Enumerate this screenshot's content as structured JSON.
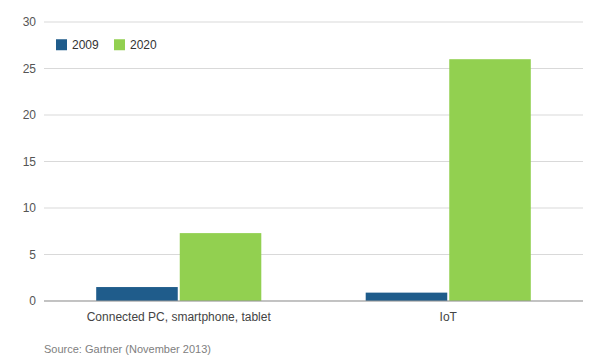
{
  "chart_data": {
    "type": "bar",
    "categories": [
      "Connected PC, smartphone, tablet",
      "IoT"
    ],
    "series": [
      {
        "name": "2009",
        "color": "#1f5c8b",
        "values": [
          1.5,
          0.9
        ]
      },
      {
        "name": "2020",
        "color": "#92d050",
        "values": [
          7.3,
          26.0
        ]
      }
    ],
    "ylim": [
      0,
      30
    ],
    "yticks": [
      0,
      5,
      10,
      15,
      20,
      25,
      30
    ],
    "grid": true,
    "legend": "upper left",
    "annotations": [
      "Source: Gartner (November 2013)"
    ]
  }
}
